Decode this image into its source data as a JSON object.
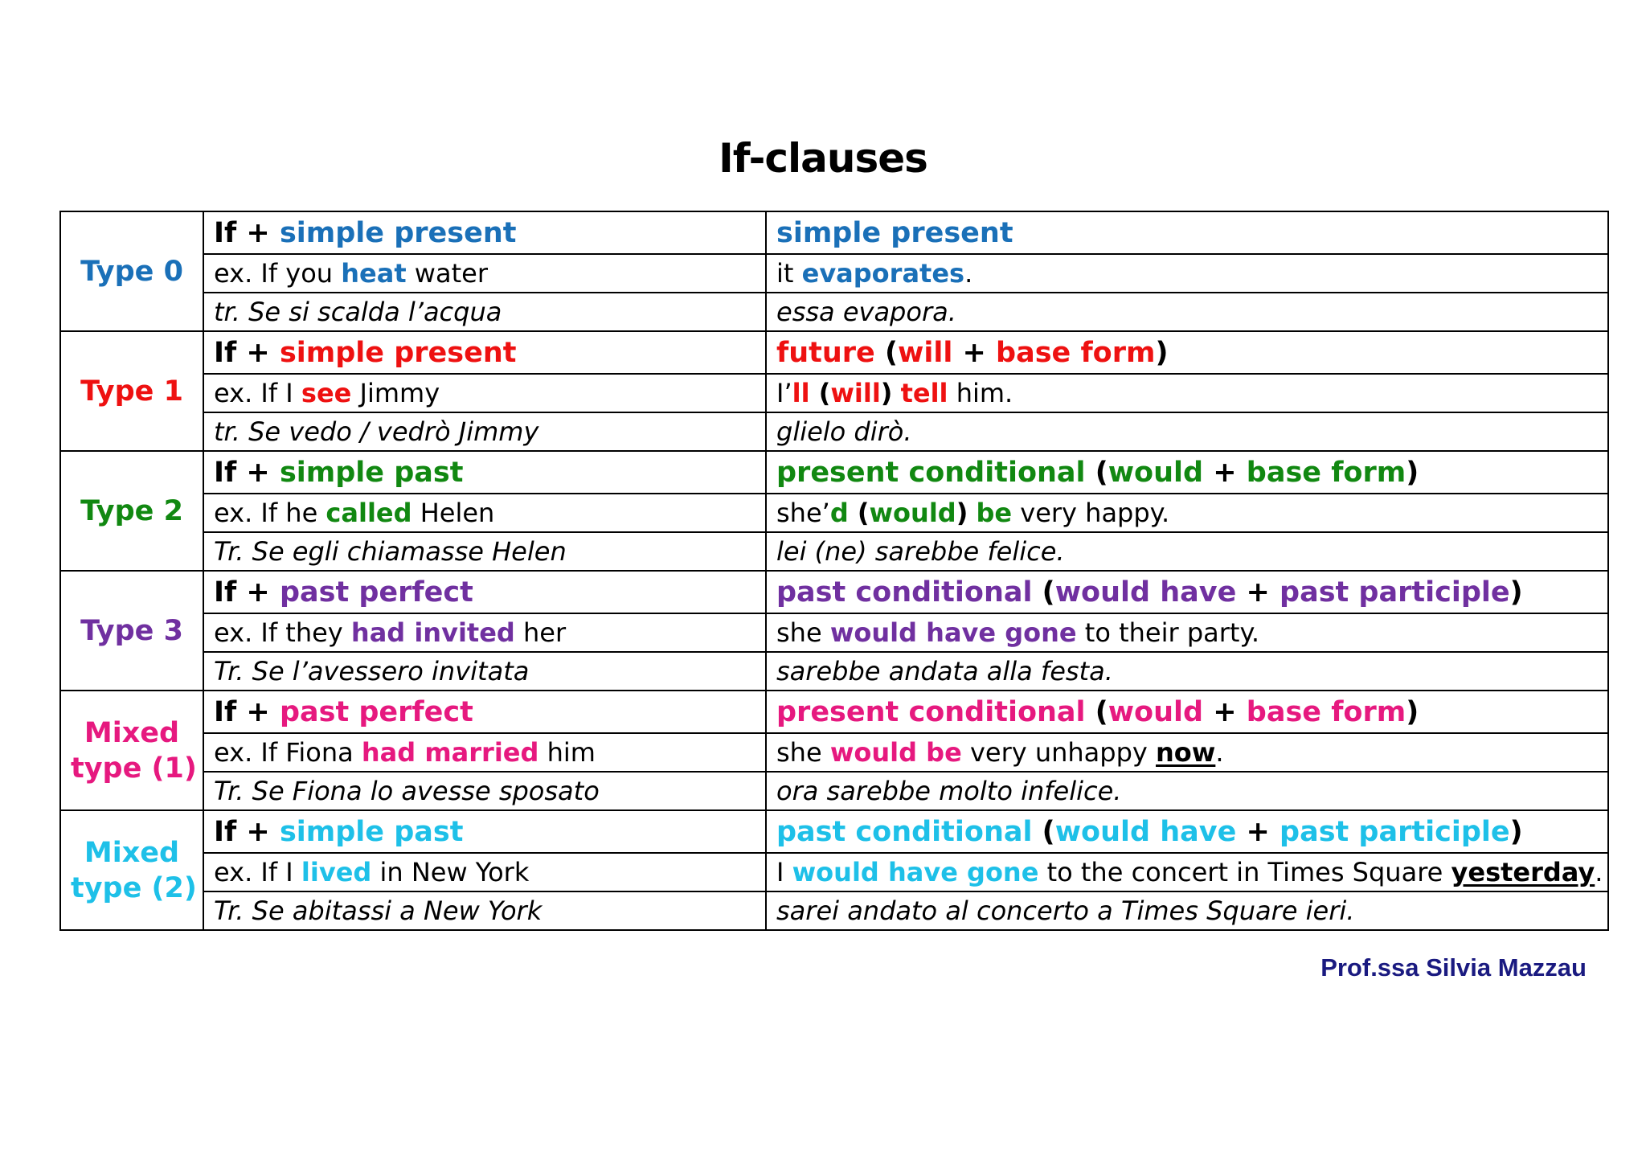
{
  "title": "If-clauses",
  "author": "Prof.ssa Silvia Mazzau",
  "colors": {
    "type0": "#1a70b8",
    "type1": "#ee1111",
    "type2": "#118811",
    "type3": "#7030a0",
    "mixed1": "#e6197f",
    "mixed2": "#1ec0e8",
    "author": "#1a1a80",
    "black": "#000000"
  },
  "rows": [
    {
      "label": [
        "Type 0"
      ],
      "color_key": "type0",
      "form_if": [
        [
          "If + ",
          "black"
        ],
        [
          "simple present",
          "c"
        ]
      ],
      "form_main": [
        [
          "simple present",
          "c"
        ]
      ],
      "ex_if": [
        [
          "ex. If you ",
          "n"
        ],
        [
          "heat",
          "cb"
        ],
        [
          " water",
          "n"
        ]
      ],
      "ex_main": [
        [
          "it ",
          "n"
        ],
        [
          "evaporates",
          "cb"
        ],
        [
          ".",
          "n"
        ]
      ],
      "tr_if": "tr. Se si scalda l’acqua",
      "tr_main": "essa evapora."
    },
    {
      "label": [
        "Type 1"
      ],
      "color_key": "type1",
      "form_if": [
        [
          "If + ",
          "black"
        ],
        [
          "simple present",
          "c"
        ]
      ],
      "form_main": [
        [
          "future",
          "c"
        ],
        [
          " (",
          "black"
        ],
        [
          "will",
          "c"
        ],
        [
          " + ",
          "black"
        ],
        [
          "base form",
          "c"
        ],
        [
          ")",
          "black"
        ]
      ],
      "ex_if": [
        [
          "ex. If I ",
          "n"
        ],
        [
          "see",
          "cb"
        ],
        [
          " Jimmy",
          "n"
        ]
      ],
      "ex_main": [
        [
          "I’",
          "n"
        ],
        [
          "ll",
          "cb"
        ],
        [
          " (",
          "bb"
        ],
        [
          "will",
          "cb"
        ],
        [
          ")",
          "bb"
        ],
        [
          " ",
          "n"
        ],
        [
          "tell",
          "cb"
        ],
        [
          " him.",
          "n"
        ]
      ],
      "tr_if": "tr. Se vedo / vedrò Jimmy",
      "tr_main": "glielo dirò."
    },
    {
      "label": [
        "Type 2"
      ],
      "color_key": "type2",
      "form_if": [
        [
          "If + ",
          "black"
        ],
        [
          "simple past",
          "c"
        ]
      ],
      "form_main": [
        [
          "present conditional",
          "c"
        ],
        [
          " (",
          "black"
        ],
        [
          "would",
          "c"
        ],
        [
          " + ",
          "black"
        ],
        [
          "base form",
          "c"
        ],
        [
          ")",
          "black"
        ]
      ],
      "ex_if": [
        [
          "ex. If he ",
          "n"
        ],
        [
          "called",
          "cb"
        ],
        [
          " Helen",
          "n"
        ]
      ],
      "ex_main": [
        [
          "she’",
          "n"
        ],
        [
          "d",
          "cb"
        ],
        [
          " (",
          "bb"
        ],
        [
          "would",
          "cb"
        ],
        [
          ")",
          "bb"
        ],
        [
          " ",
          "n"
        ],
        [
          "be",
          "cb"
        ],
        [
          " very happy.",
          "n"
        ]
      ],
      "tr_if": "Tr. Se egli chiamasse Helen",
      "tr_main": "lei (ne) sarebbe felice."
    },
    {
      "label": [
        "Type 3"
      ],
      "color_key": "type3",
      "form_if": [
        [
          "If + ",
          "black"
        ],
        [
          "past perfect",
          "c"
        ]
      ],
      "form_main": [
        [
          "past conditional",
          "c"
        ],
        [
          " (",
          "black"
        ],
        [
          "would have",
          "c"
        ],
        [
          " + ",
          "black"
        ],
        [
          "past participle",
          "c"
        ],
        [
          ")",
          "black"
        ]
      ],
      "ex_if": [
        [
          "ex. If they ",
          "n"
        ],
        [
          "had invited",
          "cb"
        ],
        [
          " her",
          "n"
        ]
      ],
      "ex_main": [
        [
          "she ",
          "n"
        ],
        [
          "would have gone",
          "cb"
        ],
        [
          " to their party.",
          "n"
        ]
      ],
      "tr_if": "Tr. Se l’avessero invitata",
      "tr_main": "sarebbe andata alla festa."
    },
    {
      "label": [
        "Mixed",
        "type (1)"
      ],
      "color_key": "mixed1",
      "form_if": [
        [
          "If + ",
          "black"
        ],
        [
          "past perfect",
          "c"
        ]
      ],
      "form_main": [
        [
          "present conditional",
          "c"
        ],
        [
          " (",
          "black"
        ],
        [
          "would",
          "c"
        ],
        [
          " + ",
          "black"
        ],
        [
          "base form",
          "c"
        ],
        [
          ")",
          "black"
        ]
      ],
      "ex_if": [
        [
          "ex. If Fiona ",
          "n"
        ],
        [
          "had married",
          "cb"
        ],
        [
          " him",
          "n"
        ]
      ],
      "ex_main": [
        [
          "she ",
          "n"
        ],
        [
          "would be",
          "cb"
        ],
        [
          " very unhappy ",
          "n"
        ],
        [
          "now",
          "ub"
        ],
        [
          ".",
          "n"
        ]
      ],
      "tr_if": "Tr. Se Fiona lo avesse sposato",
      "tr_main": "ora sarebbe molto infelice."
    },
    {
      "label": [
        "Mixed",
        "type (2)"
      ],
      "color_key": "mixed2",
      "form_if": [
        [
          "If + ",
          "black"
        ],
        [
          "simple past",
          "c"
        ]
      ],
      "form_main": [
        [
          "past conditional",
          "c"
        ],
        [
          " (",
          "black"
        ],
        [
          "would have",
          "c"
        ],
        [
          " + ",
          "black"
        ],
        [
          "past participle",
          "c"
        ],
        [
          ")",
          "black"
        ]
      ],
      "ex_if": [
        [
          "ex. If I ",
          "n"
        ],
        [
          "lived",
          "cb"
        ],
        [
          " in New York",
          "n"
        ]
      ],
      "ex_main": [
        [
          "I ",
          "n"
        ],
        [
          "would have gone",
          "cb"
        ],
        [
          " to the concert in Times Square ",
          "n"
        ],
        [
          "yesterday",
          "ub"
        ],
        [
          ".",
          "n"
        ]
      ],
      "tr_if": "Tr. Se abitassi a New York",
      "tr_main": "sarei andato al concerto a Times Square ieri."
    }
  ]
}
